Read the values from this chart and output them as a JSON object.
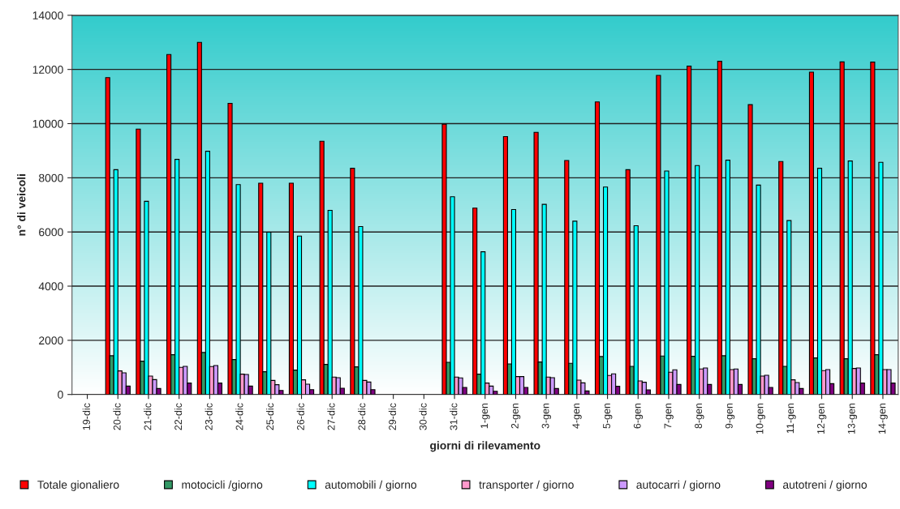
{
  "chart_data": {
    "type": "bar",
    "xlabel": "giorni di rilevamento",
    "ylabel": "n° di veicoli",
    "categories": [
      "19-dic",
      "20-dic",
      "21-dic",
      "22-dic",
      "23-dic",
      "24-dic",
      "25-dic",
      "26-dic",
      "27-dic",
      "28-dic",
      "29-dic",
      "30-dic",
      "31-dic",
      "1-gen",
      "2-gen",
      "3-gen",
      "4-gen",
      "5-gen",
      "6-gen",
      "7-gen",
      "8-gen",
      "9-gen",
      "10-gen",
      "11-gen",
      "12-gen",
      "13-gen",
      "14-gen"
    ],
    "series": [
      {
        "name": "Totale gionaliero",
        "color": "#ff0000",
        "values": [
          null,
          11700,
          9800,
          12550,
          13000,
          10750,
          7800,
          7800,
          9350,
          8350,
          null,
          null,
          9980,
          6880,
          9520,
          9680,
          8640,
          10800,
          8300,
          11780,
          12120,
          12300,
          10700,
          8600,
          11900,
          12280,
          12270
        ]
      },
      {
        "name": "motocicli /giorno",
        "color": "#339966",
        "values": [
          null,
          1430,
          1230,
          1470,
          1550,
          1290,
          840,
          900,
          1110,
          1020,
          null,
          null,
          1190,
          750,
          1130,
          1200,
          1150,
          1400,
          1040,
          1420,
          1410,
          1430,
          1320,
          1040,
          1350,
          1320,
          1470
        ]
      },
      {
        "name": "automobili / giorno",
        "color": "#00ffff",
        "values": [
          null,
          8300,
          7130,
          8680,
          8980,
          7750,
          5990,
          5850,
          6800,
          6200,
          null,
          null,
          7300,
          5270,
          6830,
          7020,
          6400,
          7660,
          6230,
          8250,
          8450,
          8650,
          7730,
          6420,
          8350,
          8620,
          8570
        ]
      },
      {
        "name": "transporter / giorno",
        "color": "#ff99cc",
        "values": [
          null,
          870,
          680,
          1000,
          1030,
          750,
          520,
          540,
          640,
          520,
          null,
          null,
          640,
          420,
          660,
          640,
          530,
          700,
          500,
          820,
          940,
          920,
          680,
          540,
          880,
          960,
          920
        ]
      },
      {
        "name": "autocarri / giorno",
        "color": "#cc99ff",
        "values": [
          null,
          800,
          550,
          1040,
          1070,
          740,
          360,
          380,
          620,
          460,
          null,
          null,
          610,
          310,
          660,
          620,
          430,
          760,
          450,
          910,
          980,
          940,
          710,
          440,
          920,
          980,
          920
        ]
      },
      {
        "name": "autotreni / giorno",
        "color": "#800080",
        "values": [
          null,
          310,
          220,
          420,
          420,
          310,
          150,
          180,
          230,
          180,
          null,
          null,
          260,
          120,
          260,
          220,
          130,
          300,
          170,
          370,
          370,
          370,
          260,
          220,
          400,
          420,
          420
        ]
      }
    ],
    "ylim": [
      0,
      14000
    ],
    "yticks": [
      0,
      2000,
      4000,
      6000,
      8000,
      10000,
      12000,
      14000
    ],
    "grid": "y",
    "legend": "bottom"
  }
}
